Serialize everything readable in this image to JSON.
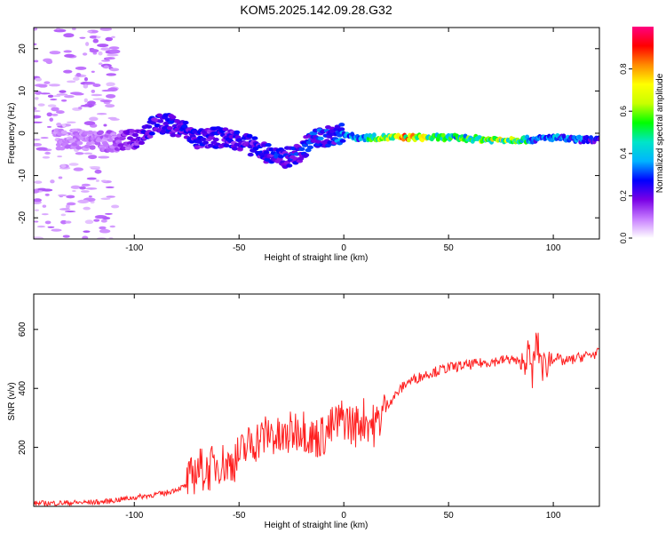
{
  "title": "KOM5.2025.142.09.28.G32",
  "chart_data": [
    {
      "type": "heatmap",
      "xlabel": "Height of straight line (km)",
      "ylabel": "Frequency (Hz)",
      "xlim": [
        -148,
        122
      ],
      "ylim": [
        -25,
        25
      ],
      "xticks": [
        -100,
        -50,
        0,
        50,
        100
      ],
      "yticks": [
        20,
        10,
        0,
        -10,
        -20
      ],
      "colorbar": {
        "label": "Normalized spectral amplitude",
        "range": [
          0,
          1
        ],
        "ticks": [
          "0.0",
          "0.2",
          "0.4",
          "0.6",
          "0.8"
        ],
        "colors": [
          "#ffffff",
          "#c77dff",
          "#7a00e6",
          "#0000ff",
          "#00b4ff",
          "#00e5c8",
          "#00ff00",
          "#c8ff00",
          "#ffff00",
          "#ff8c00",
          "#ff0000",
          "#ff0080"
        ]
      },
      "ridge": [
        {
          "x": -125,
          "y": -1.5,
          "amp": 0.1
        },
        {
          "x": -110,
          "y": -2.0,
          "amp": 0.12
        },
        {
          "x": -100,
          "y": -1.5,
          "amp": 0.2
        },
        {
          "x": -92,
          "y": 1.5,
          "amp": 0.25
        },
        {
          "x": -85,
          "y": 2.5,
          "amp": 0.25
        },
        {
          "x": -75,
          "y": 0.5,
          "amp": 0.25
        },
        {
          "x": -70,
          "y": -1.5,
          "amp": 0.25
        },
        {
          "x": -60,
          "y": -1.0,
          "amp": 0.25
        },
        {
          "x": -50,
          "y": -1.5,
          "amp": 0.25
        },
        {
          "x": -42,
          "y": -3.5,
          "amp": 0.25
        },
        {
          "x": -30,
          "y": -6.0,
          "amp": 0.28
        },
        {
          "x": -22,
          "y": -5.0,
          "amp": 0.28
        },
        {
          "x": -15,
          "y": -1.5,
          "amp": 0.3
        },
        {
          "x": -5,
          "y": -0.5,
          "amp": 0.3
        },
        {
          "x": 0,
          "y": 0.0,
          "amp": 0.4
        },
        {
          "x": 5,
          "y": -1.0,
          "amp": 0.35
        },
        {
          "x": 15,
          "y": -1.0,
          "amp": 0.6
        },
        {
          "x": 30,
          "y": -1.0,
          "amp": 0.8
        },
        {
          "x": 50,
          "y": -1.0,
          "amp": 0.5
        },
        {
          "x": 70,
          "y": -1.5,
          "amp": 0.7
        },
        {
          "x": 85,
          "y": -1.5,
          "amp": 0.6
        },
        {
          "x": 90,
          "y": -1.5,
          "amp": 0.35
        },
        {
          "x": 100,
          "y": -1.0,
          "amp": 0.4
        },
        {
          "x": 110,
          "y": -1.5,
          "amp": 0.35
        },
        {
          "x": 122,
          "y": -1.5,
          "amp": 0.3
        }
      ]
    },
    {
      "type": "line",
      "xlabel": "Height of straight line (km)",
      "ylabel": "SNR (v/v)",
      "xlim": [
        -148,
        122
      ],
      "ylim": [
        0,
        720
      ],
      "xticks": [
        -100,
        -50,
        0,
        50,
        100
      ],
      "yticks": [
        200,
        400,
        600
      ],
      "color": "#ff2020",
      "x": [
        -148,
        -130,
        -115,
        -105,
        -95,
        -85,
        -75,
        -70,
        -65,
        -60,
        -55,
        -50,
        -45,
        -40,
        -35,
        -30,
        -25,
        -20,
        -15,
        -10,
        -5,
        0,
        5,
        10,
        15,
        20,
        25,
        30,
        40,
        50,
        60,
        70,
        80,
        85,
        88,
        90,
        92,
        95,
        100,
        105,
        110,
        115,
        122
      ],
      "y": [
        10,
        12,
        15,
        25,
        35,
        45,
        70,
        130,
        120,
        150,
        140,
        170,
        210,
        230,
        250,
        220,
        250,
        270,
        230,
        240,
        270,
        300,
        270,
        300,
        270,
        340,
        380,
        420,
        450,
        470,
        480,
        490,
        500,
        480,
        520,
        450,
        560,
        470,
        510,
        490,
        500,
        510,
        520
      ]
    }
  ]
}
